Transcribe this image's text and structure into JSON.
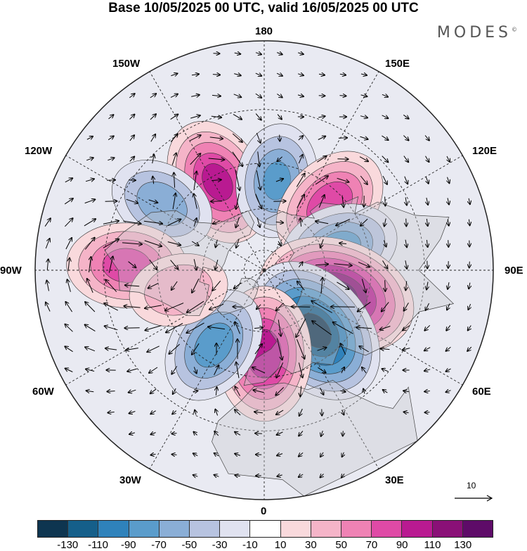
{
  "title": "Base 10/05/2025 00 UTC, valid 16/05/2025 00 UTC",
  "logo_text": "MODES",
  "logo_mark": "©",
  "longitude_labels": {
    "top": "180",
    "top_left": "150W",
    "top_right": "150E",
    "upper_left": "120W",
    "upper_right": "120E",
    "left": "90W",
    "right": "90E",
    "lower_left": "60W",
    "lower_right": "60E",
    "bottom_left": "30W",
    "bottom_right": "30E",
    "bottom": "0"
  },
  "reference_vector_label": "10",
  "colorbar": {
    "ticks": [
      "-130",
      "-110",
      "-90",
      "-70",
      "-50",
      "-30",
      "-10",
      "10",
      "30",
      "50",
      "70",
      "90",
      "110",
      "130"
    ],
    "colors": [
      "#0e3550",
      "#155f8a",
      "#2f82bb",
      "#5a9ccb",
      "#8aaed6",
      "#b7c3e0",
      "#e0e2f0",
      "#ffffff",
      "#f9d9dc",
      "#f5b4c8",
      "#ef82b4",
      "#df4aa6",
      "#b91a91",
      "#8a1077",
      "#5e0b68"
    ]
  },
  "map": {
    "projection": "north polar stereographic",
    "anomaly_centers": [
      {
        "lon": -152,
        "lat": 43,
        "value": 95
      },
      {
        "lon": 172,
        "lat": 47,
        "value": -70
      },
      {
        "lon": 135,
        "lat": 46,
        "value": 85
      },
      {
        "lon": 107,
        "lat": 52,
        "value": -75
      },
      {
        "lon": 71,
        "lat": 53,
        "value": 145
      },
      {
        "lon": 40,
        "lat": 52,
        "value": -140
      },
      {
        "lon": 0,
        "lat": 50,
        "value": 105
      },
      {
        "lon": -34,
        "lat": 47,
        "value": -80
      },
      {
        "lon": -123,
        "lat": 34,
        "value": -60
      },
      {
        "lon": -92,
        "lat": 28,
        "value": 80
      },
      {
        "lon": -77,
        "lat": 48,
        "value": 45
      }
    ]
  }
}
